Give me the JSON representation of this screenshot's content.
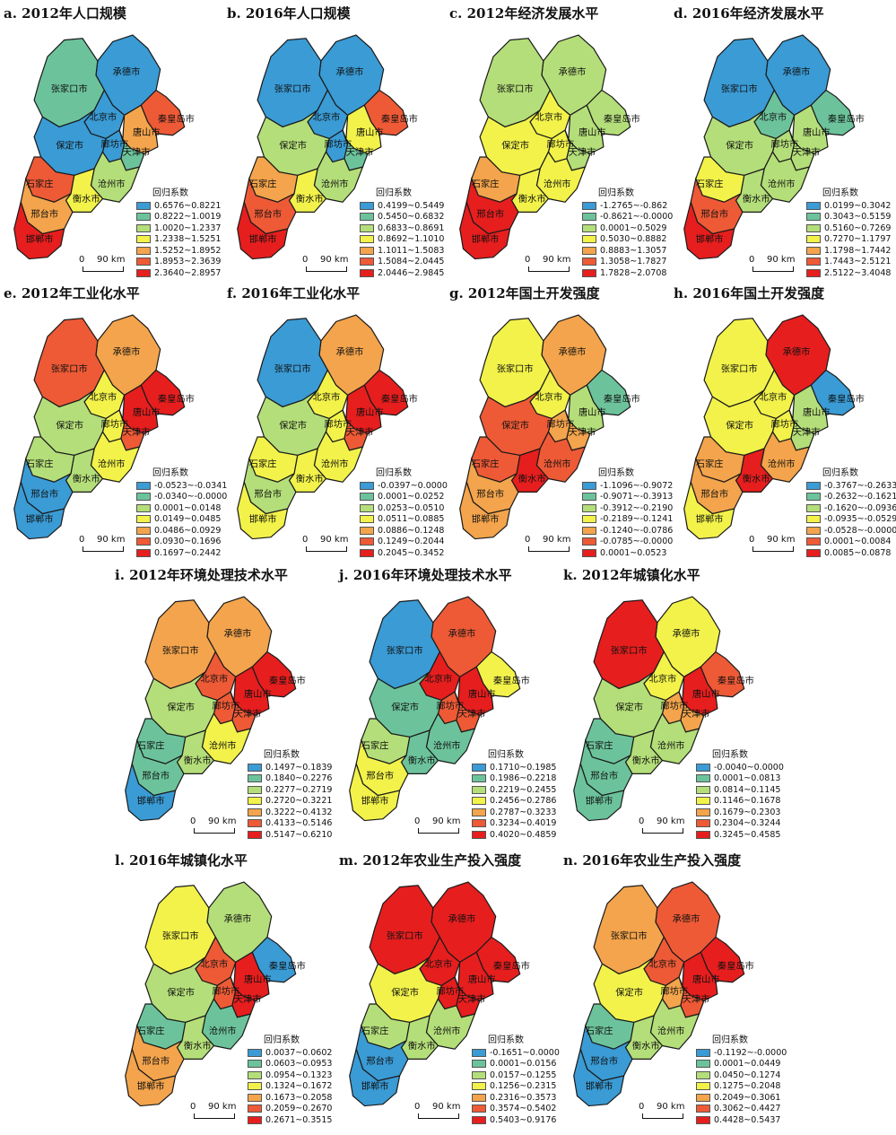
{
  "legend_title": "回归系数",
  "scale": {
    "zero": "0",
    "dist": "90 km"
  },
  "cities": [
    "承德市",
    "张家口市",
    "北京市",
    "秦皇岛市",
    "廊坊市",
    "唐山市",
    "天津市",
    "保定市",
    "沧州市",
    "石家庄",
    "衡水市",
    "邢台市",
    "邯郸市"
  ],
  "colors": [
    "#3a9bd5",
    "#6cc39b",
    "#b4de79",
    "#f2f24a",
    "#f3a44c",
    "#ee5a36",
    "#e61e1e"
  ],
  "panels": [
    {
      "title": "a. 2012年人口规模",
      "ranges": [
        "0.6576~0.8221",
        "0.8222~1.0019",
        "1.0020~1.2337",
        "1.2338~1.5251",
        "1.5252~1.8952",
        "1.8953~2.3639",
        "2.3640~2.8957"
      ],
      "fill": [
        0,
        1,
        0,
        5,
        0,
        4,
        1,
        0,
        2,
        5,
        3,
        4,
        6
      ]
    },
    {
      "title": "b. 2016年人口规模",
      "ranges": [
        "0.4199~0.5449",
        "0.5450~0.6832",
        "0.6833~0.8691",
        "0.8692~1.1010",
        "1.1011~1.5083",
        "1.5084~2.0445",
        "2.0446~2.9845"
      ],
      "fill": [
        0,
        0,
        0,
        5,
        0,
        3,
        1,
        2,
        2,
        4,
        3,
        5,
        6
      ]
    },
    {
      "title": "c. 2012年经济发展水平",
      "ranges": [
        "-1.2765~-0.862",
        "-0.8621~-0.0000",
        "0.0001~0.5029",
        "0.5030~0.8882",
        "0.8883~1.3057",
        "1.3058~1.7827",
        "1.7828~2.0708"
      ],
      "fill": [
        2,
        2,
        3,
        2,
        3,
        2,
        2,
        3,
        3,
        4,
        3,
        6,
        6
      ]
    },
    {
      "title": "d. 2016年经济发展水平",
      "ranges": [
        "0.0199~0.3042",
        "0.3043~0.5159",
        "0.5160~0.7269",
        "0.7270~1.1797",
        "1.1798~1.7442",
        "1.7443~2.5121",
        "2.5122~3.4048"
      ],
      "fill": [
        0,
        0,
        1,
        1,
        2,
        2,
        2,
        2,
        2,
        3,
        2,
        5,
        6
      ]
    },
    {
      "title": "e. 2012年工业化水平",
      "ranges": [
        "-0.0523~-0.0341",
        "-0.0340~-0.0000",
        "0.0001~0.0148",
        "0.0149~0.0485",
        "0.0486~0.0929",
        "0.0930~0.1696",
        "0.1697~0.2442"
      ],
      "fill": [
        4,
        5,
        3,
        6,
        3,
        6,
        5,
        2,
        3,
        2,
        2,
        0,
        0
      ]
    },
    {
      "title": "f. 2016年工业化水平",
      "ranges": [
        "-0.0397~0.0000",
        "0.0001~0.0252",
        "0.0253~0.0510",
        "0.0511~0.0885",
        "0.0886~0.1248",
        "0.1249~0.2044",
        "0.2045~0.3452"
      ],
      "fill": [
        4,
        0,
        3,
        6,
        3,
        6,
        5,
        2,
        3,
        3,
        3,
        2,
        3
      ]
    },
    {
      "title": "g. 2012年国土开发强度",
      "ranges": [
        "-1.1096~-0.9072",
        "-0.9071~-0.3913",
        "-0.3912~-0.2190",
        "-0.2189~-0.1241",
        "-0.1240~-0.0786",
        "-0.0785~-0.0000",
        "0.0001~0.0523"
      ],
      "fill": [
        4,
        3,
        3,
        1,
        4,
        2,
        4,
        5,
        5,
        5,
        6,
        4,
        4
      ]
    },
    {
      "title": "h. 2016年国土开发强度",
      "ranges": [
        "-0.3767~-0.2633",
        "-0.2632~-0.1621",
        "-0.1620~-0.0936",
        "-0.0935~-0.0529",
        "-0.0528~-0.0000",
        "0.0001~0.0084",
        "0.0085~0.0878"
      ],
      "fill": [
        6,
        3,
        3,
        0,
        3,
        2,
        2,
        3,
        4,
        4,
        6,
        4,
        3
      ]
    },
    {
      "title": "i. 2012年环境处理技术水平",
      "ranges": [
        "0.1497~0.1839",
        "0.1840~0.2276",
        "0.2277~0.2719",
        "0.2720~0.3221",
        "0.3222~0.4132",
        "0.4133~0.5146",
        "0.5147~0.6210"
      ],
      "fill": [
        4,
        4,
        5,
        6,
        5,
        6,
        5,
        2,
        3,
        1,
        2,
        1,
        0
      ]
    },
    {
      "title": "j. 2016年环境处理技术水平",
      "ranges": [
        "0.1710~0.1985",
        "0.1986~0.2218",
        "0.2219~0.2455",
        "0.2456~0.2786",
        "0.2787~0.3233",
        "0.3234~0.4019",
        "0.4020~0.4859"
      ],
      "fill": [
        5,
        0,
        6,
        3,
        5,
        6,
        5,
        1,
        1,
        2,
        1,
        3,
        3
      ]
    },
    {
      "title": "k. 2012年城镇化水平",
      "ranges": [
        "-0.0040~0.0000",
        "0.0001~0.0813",
        "0.0814~0.1145",
        "0.1146~0.1678",
        "0.1679~0.2303",
        "0.2304~0.3244",
        "0.3245~0.4585"
      ],
      "fill": [
        3,
        6,
        3,
        5,
        4,
        6,
        4,
        2,
        2,
        1,
        2,
        1,
        1
      ]
    },
    {
      "title": "l. 2016年城镇化水平",
      "ranges": [
        "0.0037~0.0602",
        "0.0603~0.0953",
        "0.0954~0.1323",
        "0.1324~0.1672",
        "0.1673~0.2058",
        "0.2059~0.2670",
        "0.2671~0.3515"
      ],
      "fill": [
        2,
        3,
        5,
        0,
        5,
        6,
        6,
        2,
        1,
        1,
        2,
        4,
        4
      ]
    },
    {
      "title": "m. 2012年农业生产投入强度",
      "ranges": [
        "-0.1651~0.0000",
        "0.0001~0.0156",
        "0.0157~0.1255",
        "0.1256~0.2315",
        "0.2316~0.3573",
        "0.3574~0.5402",
        "0.5403~0.9176"
      ],
      "fill": [
        6,
        6,
        6,
        6,
        6,
        6,
        6,
        3,
        2,
        2,
        2,
        0,
        0
      ]
    },
    {
      "title": "n. 2016年农业生产投入强度",
      "ranges": [
        "-0.1192~-0.0000",
        "0.0001~0.0449",
        "0.0450~0.1274",
        "0.1275~0.2048",
        "0.2049~0.3061",
        "0.3062~0.4427",
        "0.4428~0.5437"
      ],
      "fill": [
        5,
        4,
        5,
        6,
        4,
        6,
        5,
        3,
        2,
        1,
        2,
        0,
        0
      ]
    }
  ]
}
